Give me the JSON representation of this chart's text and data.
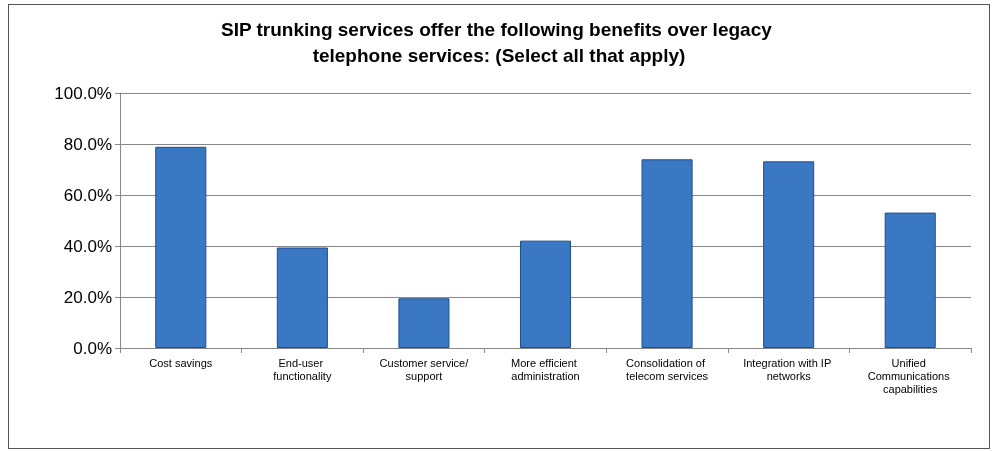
{
  "chart_data": {
    "type": "bar",
    "title": "SIP trunking services offer the following benefits over legacy telephone services: (Select all that apply)",
    "categories": [
      "Cost savings",
      "End-user functionality",
      "Customer service/support",
      "More efficient administration",
      "Consolidation of telecom services",
      "Integration with IP networks",
      "Unified Communications capabilities"
    ],
    "values": [
      78.9,
      39.4,
      19.5,
      42.1,
      74.0,
      73.2,
      53.1
    ],
    "color": "#3a78c4",
    "ylim": [
      0,
      100
    ],
    "yticks": [
      {
        "value": 0,
        "label": "0.0%"
      },
      {
        "value": 20,
        "label": "20.0%"
      },
      {
        "value": 40,
        "label": "40.0%"
      },
      {
        "value": 60,
        "label": "60.0%"
      },
      {
        "value": 80,
        "label": "80.0%"
      },
      {
        "value": 100,
        "label": "100.0%"
      }
    ],
    "grid": "y"
  }
}
